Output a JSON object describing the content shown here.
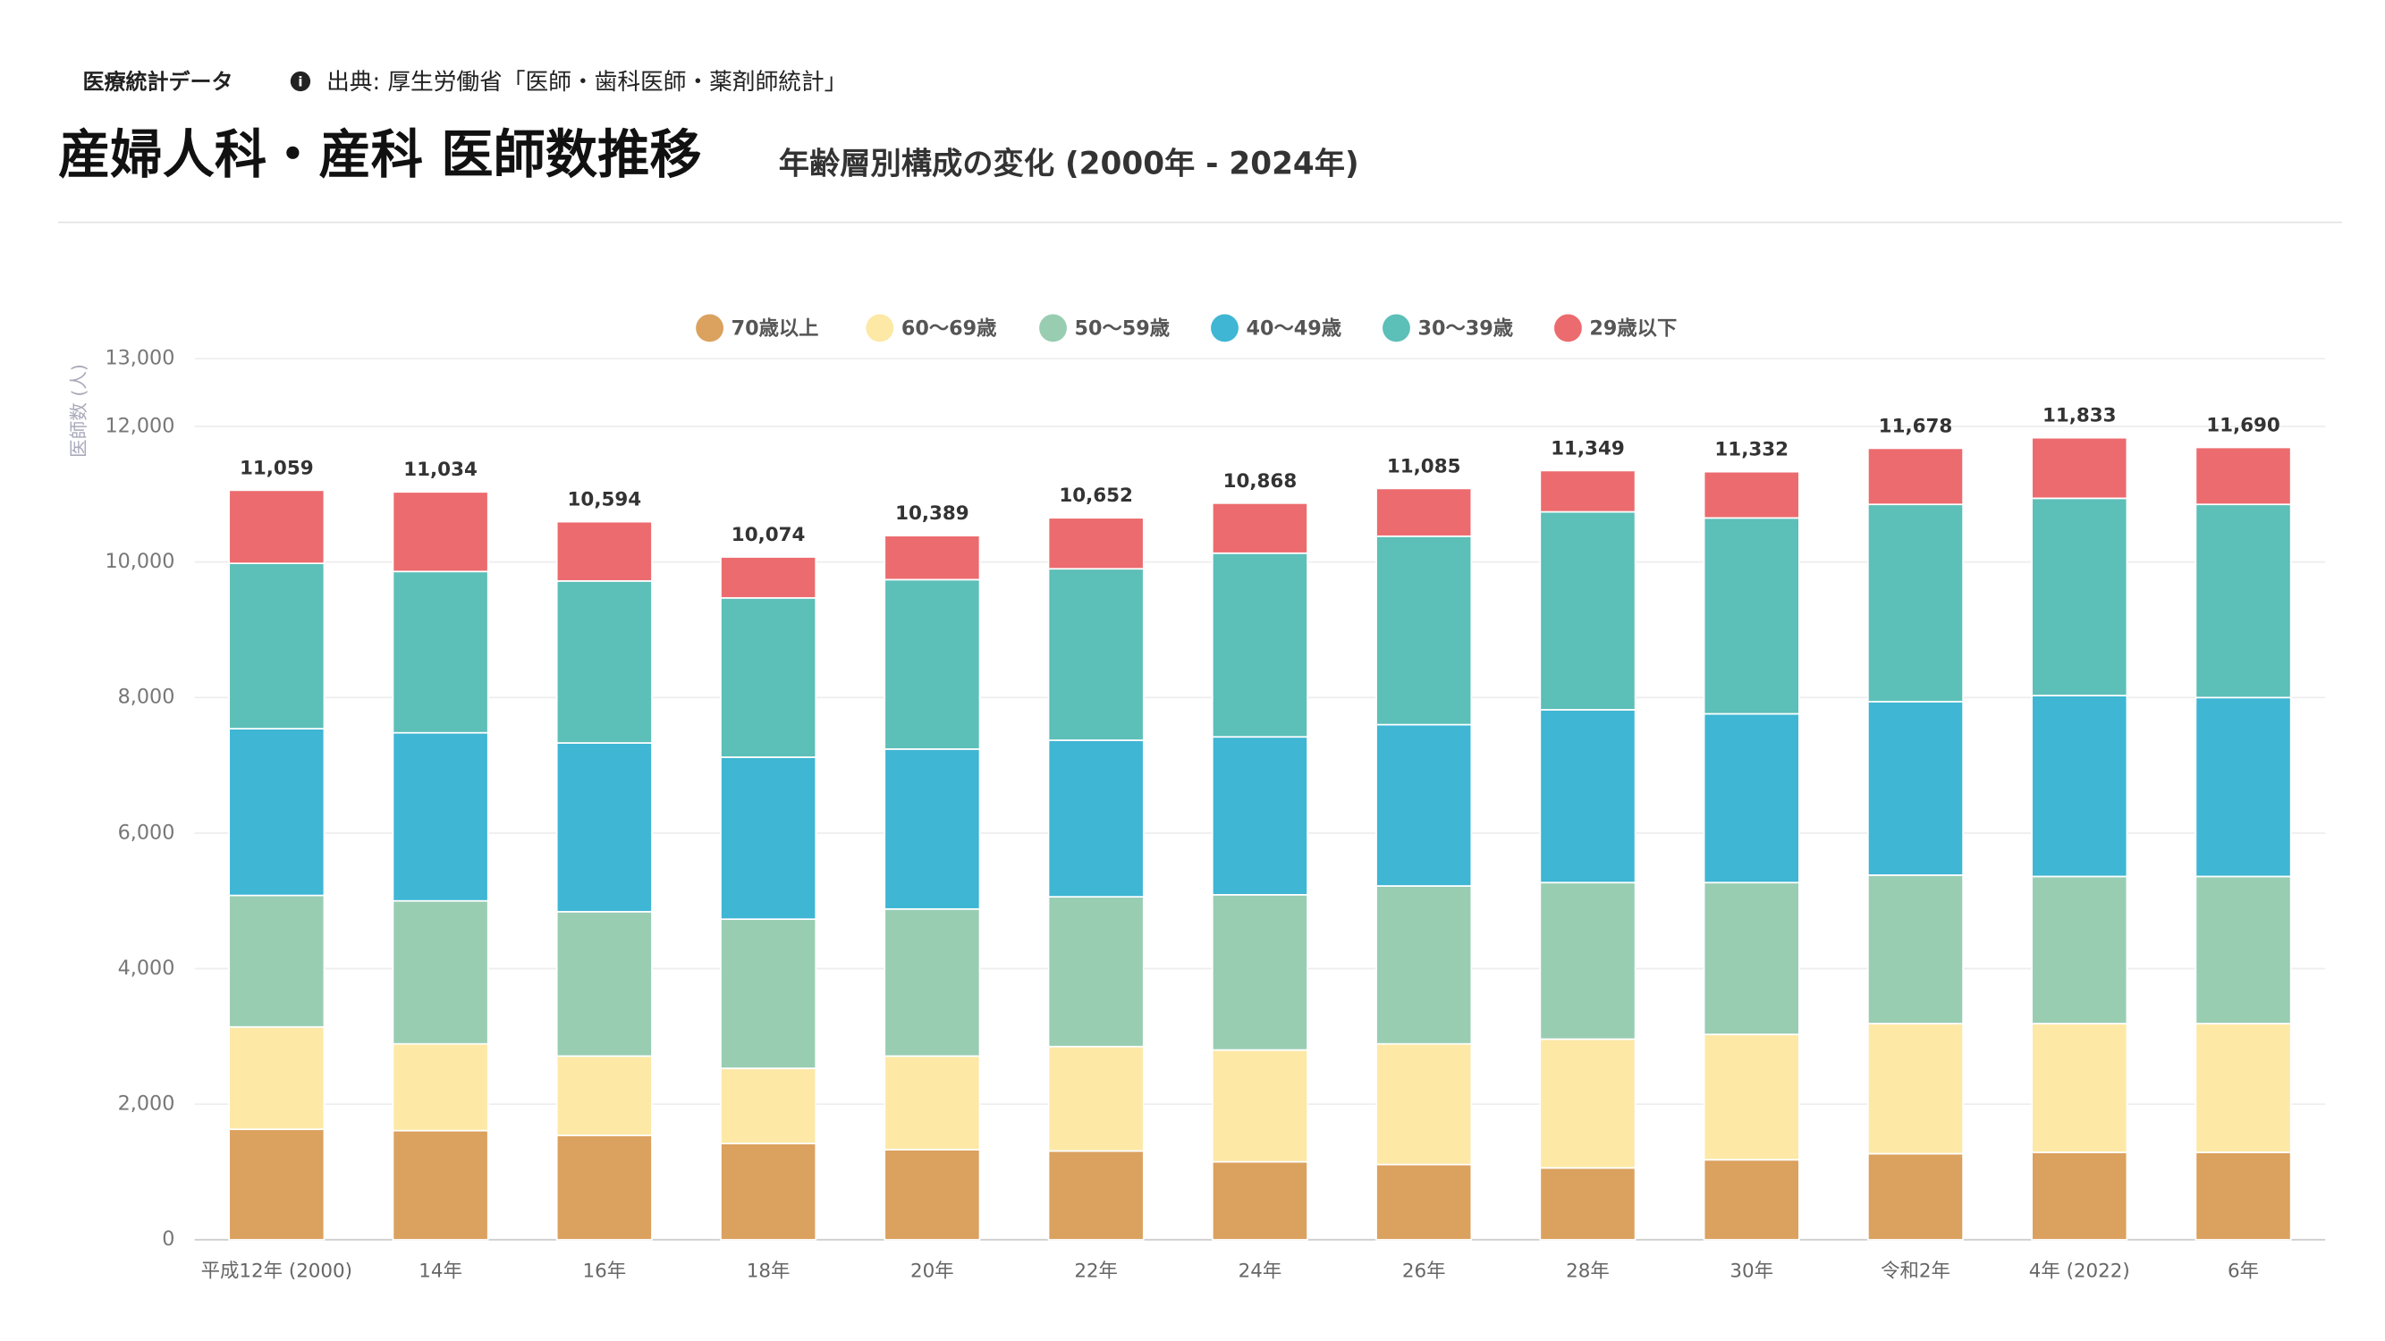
{
  "header": {
    "tag": "医療統計データ",
    "source": "出典: 厚生労働省「医師・歯科医師・薬剤師統計」",
    "title": "産婦人科・産科 医師数推移",
    "subtitle": "年齢層別構成の変化 (2000年 - 2024年)"
  },
  "chart_data": {
    "type": "stacked_bar",
    "y_label": "医師数 (人)",
    "categories": [
      "平成12年 (2000)",
      "14年",
      "16年",
      "18年",
      "20年",
      "22年",
      "24年",
      "26年",
      "28年",
      "30年",
      "令和2年",
      "4年 (2022)",
      "6年"
    ],
    "series": [
      {
        "name": "70歳以上",
        "color": "#dba15e",
        "values": [
          1630,
          1610,
          1540,
          1420,
          1330,
          1310,
          1150,
          1110,
          1060,
          1180,
          1270,
          1290,
          1290
        ]
      },
      {
        "name": "60～69歳",
        "color": "#fde8a6",
        "values": [
          1510,
          1280,
          1170,
          1110,
          1380,
          1540,
          1650,
          1780,
          1900,
          1850,
          1920,
          1900,
          1900
        ]
      },
      {
        "name": "50～59歳",
        "color": "#98cdb2",
        "values": [
          1940,
          2110,
          2130,
          2200,
          2170,
          2210,
          2290,
          2330,
          2310,
          2240,
          2190,
          2170,
          2170
        ]
      },
      {
        "name": "40～49歳",
        "color": "#3eb6d4",
        "values": [
          2460,
          2480,
          2490,
          2390,
          2360,
          2310,
          2330,
          2380,
          2550,
          2490,
          2560,
          2670,
          2640
        ]
      },
      {
        "name": "30～39歳",
        "color": "#5cbfb8",
        "values": [
          2440,
          2380,
          2390,
          2350,
          2500,
          2530,
          2710,
          2780,
          2920,
          2890,
          2910,
          2910,
          2850
        ]
      },
      {
        "name": "29歳以下",
        "color": "#ec6b6e",
        "values": [
          1079,
          1174,
          874,
          604,
          649,
          752,
          738,
          705,
          609,
          682,
          828,
          893,
          840
        ]
      }
    ],
    "totals": [
      11059,
      11034,
      10594,
      10074,
      10389,
      10652,
      10868,
      11085,
      11349,
      11332,
      11678,
      11833,
      11690
    ],
    "total_labels": [
      "11,059",
      "11,034",
      "10,594",
      "10,074",
      "10,389",
      "10,652",
      "10,868",
      "11,085",
      "11,349",
      "11,332",
      "11,678",
      "11,833",
      "11,690"
    ],
    "ylim": [
      0,
      13000
    ],
    "yticks": [
      0,
      {
        "value": 2000,
        "label": "2,000"
      },
      {
        "value": 4000,
        "label": "4,000"
      },
      {
        "value": 6000,
        "label": "6,000"
      },
      {
        "value": 8000,
        "label": "8,000"
      },
      {
        "value": 10000,
        "label": "10,000"
      },
      {
        "value": 12000,
        "label": "12,000"
      },
      {
        "value": 13000,
        "label": "13,000"
      }
    ],
    "grid": true,
    "legend": "top"
  }
}
